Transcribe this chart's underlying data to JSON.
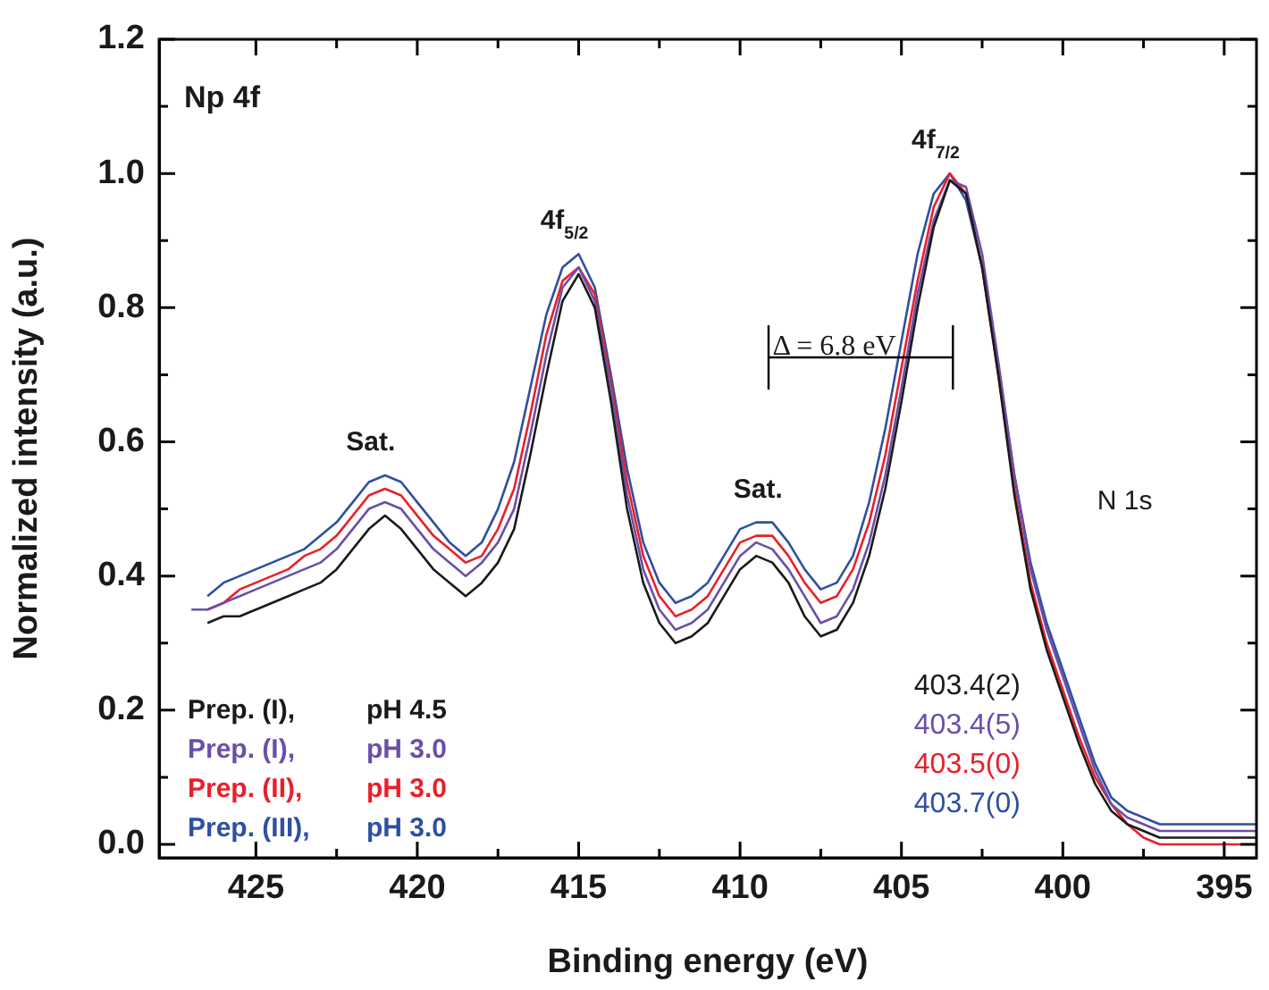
{
  "chart_data": {
    "type": "line",
    "title": "Np 4f",
    "xlabel": "Binding energy (eV)",
    "ylabel": "Normalized intensity (a.u.)",
    "x": [
      427,
      426.5,
      426,
      425.5,
      425,
      424.5,
      424,
      423.5,
      423,
      422.5,
      422,
      421.5,
      421,
      420.5,
      420,
      419.5,
      419,
      418.5,
      418,
      417.5,
      417,
      416.5,
      416,
      415.5,
      415,
      414.5,
      414,
      413.5,
      413,
      412.5,
      412,
      411.5,
      411,
      410.5,
      410,
      409.5,
      409,
      408.5,
      408,
      407.5,
      407,
      406.5,
      406,
      405.5,
      405,
      404.5,
      404,
      403.5,
      403,
      402.5,
      402,
      401.5,
      401,
      400.5,
      400,
      399.5,
      399,
      398.5,
      398,
      397.5,
      397,
      396.5,
      396,
      395.5,
      395,
      394.5,
      394
    ],
    "series": [
      {
        "name": "Prep. (I), pH 4.5",
        "color": "#1a1a1a",
        "values": [
          null,
          0.33,
          0.34,
          0.34,
          0.35,
          0.36,
          0.37,
          0.38,
          0.39,
          0.41,
          0.44,
          0.47,
          0.49,
          0.47,
          0.44,
          0.41,
          0.39,
          0.37,
          0.39,
          0.42,
          0.47,
          0.58,
          0.7,
          0.81,
          0.85,
          0.8,
          0.66,
          0.5,
          0.39,
          0.33,
          0.3,
          0.31,
          0.33,
          0.37,
          0.41,
          0.43,
          0.42,
          0.39,
          0.34,
          0.31,
          0.32,
          0.36,
          0.43,
          0.53,
          0.66,
          0.8,
          0.92,
          0.99,
          0.97,
          0.86,
          0.7,
          0.52,
          0.38,
          0.29,
          0.22,
          0.15,
          0.09,
          0.05,
          0.03,
          0.02,
          0.01,
          0.01,
          0.01,
          0.01,
          0.01,
          0.01,
          0.01
        ]
      },
      {
        "name": "Prep. (I), pH 3.0",
        "color": "#6a4fa8",
        "values": [
          0.35,
          0.35,
          0.36,
          0.37,
          0.38,
          0.39,
          0.4,
          0.41,
          0.42,
          0.44,
          0.47,
          0.5,
          0.51,
          0.5,
          0.47,
          0.44,
          0.42,
          0.4,
          0.42,
          0.45,
          0.5,
          0.61,
          0.73,
          0.83,
          0.86,
          0.81,
          0.68,
          0.52,
          0.41,
          0.35,
          0.32,
          0.33,
          0.35,
          0.39,
          0.43,
          0.45,
          0.44,
          0.41,
          0.37,
          0.33,
          0.34,
          0.38,
          0.45,
          0.55,
          0.68,
          0.82,
          0.93,
          0.99,
          0.98,
          0.88,
          0.72,
          0.55,
          0.41,
          0.32,
          0.25,
          0.18,
          0.11,
          0.06,
          0.04,
          0.03,
          0.02,
          0.02,
          0.02,
          0.02,
          0.02,
          0.02,
          0.02
        ]
      },
      {
        "name": "Prep. (II), pH 3.0",
        "color": "#e8202a",
        "values": [
          null,
          0.35,
          0.36,
          0.38,
          0.39,
          0.4,
          0.41,
          0.43,
          0.44,
          0.46,
          0.49,
          0.52,
          0.53,
          0.52,
          0.49,
          0.46,
          0.44,
          0.42,
          0.43,
          0.47,
          0.53,
          0.64,
          0.76,
          0.84,
          0.86,
          0.82,
          0.69,
          0.54,
          0.43,
          0.37,
          0.34,
          0.35,
          0.37,
          0.41,
          0.45,
          0.46,
          0.46,
          0.43,
          0.39,
          0.36,
          0.37,
          0.41,
          0.48,
          0.58,
          0.71,
          0.84,
          0.95,
          1.0,
          0.97,
          0.86,
          0.7,
          0.53,
          0.39,
          0.3,
          0.23,
          0.16,
          0.1,
          0.06,
          0.03,
          0.01,
          0,
          0,
          0,
          0,
          0,
          0,
          null
        ]
      },
      {
        "name": "Prep. (III), pH 3.0",
        "color": "#2f4fa0",
        "values": [
          null,
          0.37,
          0.39,
          0.4,
          0.41,
          0.42,
          0.43,
          0.44,
          0.46,
          0.48,
          0.51,
          0.54,
          0.55,
          0.54,
          0.51,
          0.48,
          0.45,
          0.43,
          0.45,
          0.5,
          0.57,
          0.68,
          0.79,
          0.86,
          0.88,
          0.83,
          0.7,
          0.56,
          0.45,
          0.39,
          0.36,
          0.37,
          0.39,
          0.43,
          0.47,
          0.48,
          0.48,
          0.45,
          0.41,
          0.38,
          0.39,
          0.43,
          0.51,
          0.62,
          0.75,
          0.88,
          0.97,
          1.0,
          0.96,
          0.86,
          0.71,
          0.55,
          0.42,
          0.33,
          0.26,
          0.19,
          0.12,
          0.07,
          0.05,
          0.04,
          0.03,
          0.03,
          0.03,
          0.03,
          0.03,
          0.03,
          0.03
        ]
      }
    ],
    "xlim": [
      428,
      394
    ],
    "xticks": [
      425,
      {
        "value": 422.5,
        "label": null
      },
      420,
      {
        "value": 417.5,
        "label": null
      },
      415,
      {
        "value": 412.5,
        "label": null
      },
      410,
      {
        "value": 407.5,
        "label": null
      },
      405,
      {
        "value": 402.5,
        "label": null
      },
      400,
      {
        "value": 397.5,
        "label": null
      },
      395
    ],
    "ylim": [
      -0.02,
      1.2
    ],
    "yticks": [
      {
        "value": 0,
        "label": "0.0"
      },
      {
        "value": 0.1,
        "label": null
      },
      0.2,
      {
        "value": 0.3,
        "label": null
      },
      0.4,
      {
        "value": 0.5,
        "label": null
      },
      0.6,
      {
        "value": 0.7,
        "label": null
      },
      0.8,
      {
        "value": 0.9,
        "label": null
      },
      {
        "value": 1,
        "label": "1.0"
      },
      {
        "value": 1.1,
        "label": null
      },
      1.2
    ],
    "annotations": [
      {
        "text": "4f$_{5/2}$",
        "x": 415,
        "y": 0.88
      },
      {
        "text": "4f$_{7/2}$",
        "x": 403.5,
        "y": 1.0
      },
      {
        "text": "Sat.",
        "x": 421,
        "y": 0.55
      },
      {
        "text": "Sat.",
        "x": 409,
        "y": 0.48
      },
      "Δ = 6.8 eV",
      "N 1s",
      "403.4(2)",
      "403.4(5)",
      "403.5(0)",
      "403.7(0)"
    ],
    "grid": false,
    "marker": "none",
    "line_style": "solid"
  }
}
